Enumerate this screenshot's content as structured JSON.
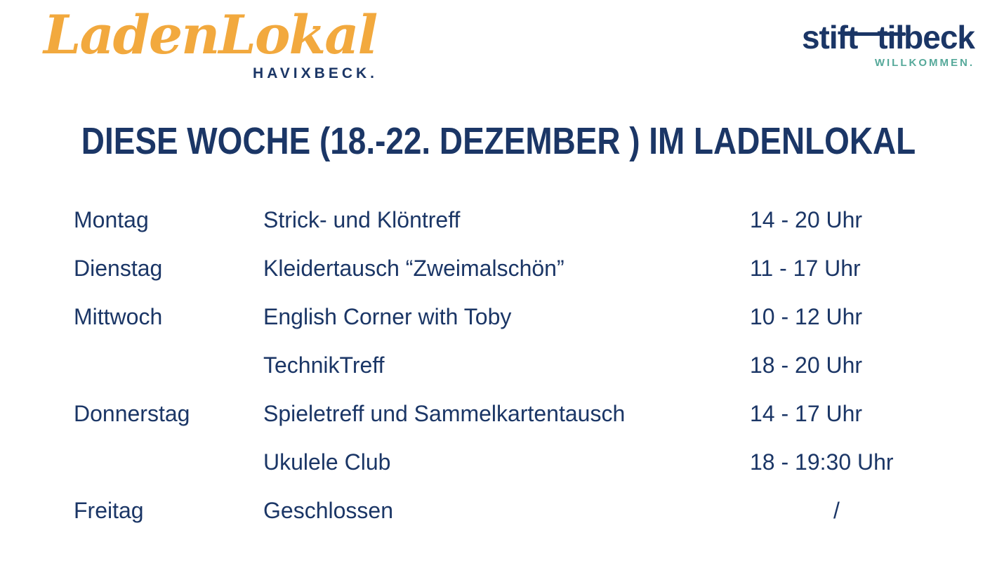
{
  "colors": {
    "navy": "#1B3666",
    "orange": "#F2A93E",
    "teal": "#56A99A",
    "bg": "#FFFFFF"
  },
  "brand": {
    "name": "LadenLokal",
    "city": "HAVIXBECK."
  },
  "partner": {
    "word1": "stift",
    "word2": "tilbeck",
    "tagline": "WILLKOMMEN."
  },
  "title": "DIESE WOCHE (18.-22. DEZEMBER ) IM LADENLOKAL",
  "schedule": {
    "rows": [
      {
        "day": "Montag",
        "event": "Strick- und Klöntreff",
        "time": "14 - 20 Uhr"
      },
      {
        "day": "Dienstag",
        "event": "Kleidertausch “Zweimalschön”",
        "time": "11 - 17 Uhr"
      },
      {
        "day": "Mittwoch",
        "event": "English Corner with Toby",
        "time": "10 - 12 Uhr"
      },
      {
        "day": "",
        "event": "TechnikTreff",
        "time": "18 - 20 Uhr"
      },
      {
        "day": "Donnerstag",
        "event": "Spieletreff und Sammelkartentausch",
        "time": "14 - 17 Uhr"
      },
      {
        "day": "",
        "event": "Ukulele Club",
        "time": "18 - 19:30 Uhr"
      },
      {
        "day": "Freitag",
        "event": "Geschlossen",
        "time": "/"
      }
    ]
  }
}
